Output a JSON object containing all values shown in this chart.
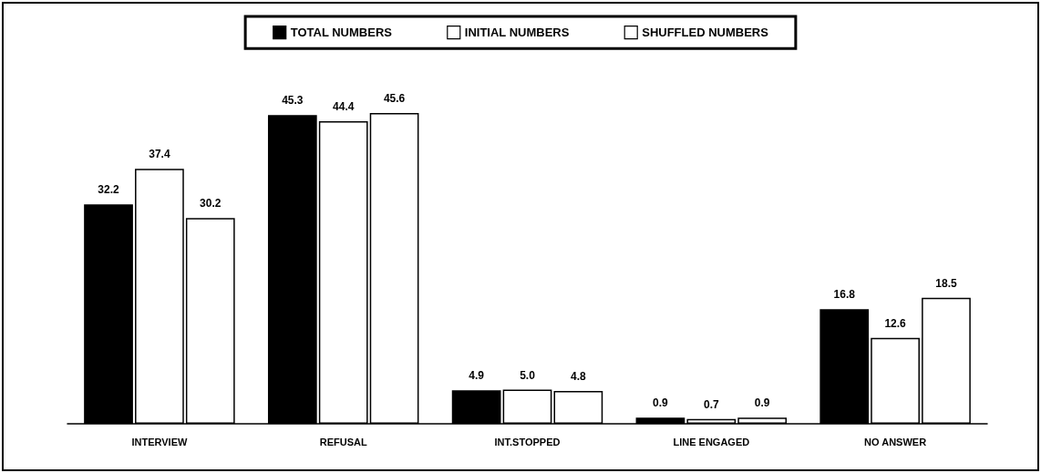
{
  "chart_data": {
    "type": "bar",
    "categories": [
      "INTERVIEW",
      "REFUSAL",
      "INT.STOPPED",
      "LINE ENGAGED",
      "NO ANSWER"
    ],
    "series": [
      {
        "name": "TOTAL NUMBERS",
        "color": "#000000",
        "values": [
          32.2,
          45.3,
          4.9,
          0.9,
          16.8
        ],
        "value_labels": [
          "32.2",
          "45.3",
          "4.9",
          "0.9",
          "16.8"
        ]
      },
      {
        "name": "INITIAL NUMBERS",
        "color": "#ffffff",
        "values": [
          37.4,
          44.4,
          5.0,
          0.7,
          12.6
        ],
        "value_labels": [
          "37.4",
          "44.4",
          "5.0",
          "0.7",
          "12.6"
        ]
      },
      {
        "name": "SHUFFLED NUMBERS",
        "color": "#ffffff",
        "values": [
          30.2,
          45.6,
          4.8,
          0.9,
          18.5
        ],
        "value_labels": [
          "30.2",
          "45.6",
          "4.8",
          "0.9",
          "18.5"
        ]
      }
    ],
    "legend": "top",
    "grid": false
  }
}
